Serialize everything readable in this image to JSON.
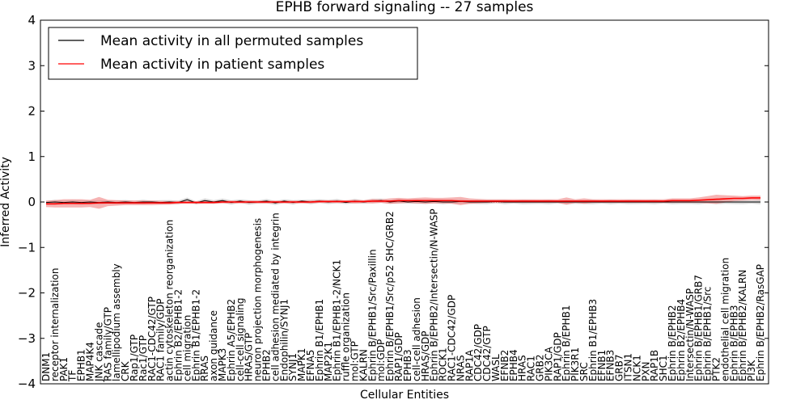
{
  "chart_data": {
    "type": "line",
    "title": "EPHB forward signaling -- 27 samples",
    "xlabel": "Cellular Entities",
    "ylabel": "Inferred Activity",
    "ylim": [
      -4,
      4
    ],
    "yticks": [
      -4,
      -3,
      -2,
      -1,
      0,
      1,
      2,
      3,
      4
    ],
    "ytick_labels": [
      "−4",
      "−3",
      "−2",
      "−1",
      "0",
      "1",
      "2",
      "3",
      "4"
    ],
    "legend_position": "top-left",
    "grid": false,
    "categories": [
      "DNM1",
      "receptor internalization",
      "PAK1",
      "TF",
      "EPHB1",
      "MAP4K4",
      "JNK cascade",
      "RAS family/GTP",
      "lamellipodium assembly",
      "CRK",
      "Rap1/GTP",
      "Rac1/GTP",
      "RAC1-CDC42/GTP",
      "RAC1 family/GDP",
      "actin cytoskeleton reorganization",
      "Ephrin B2/EPHB1-2",
      "cell migration",
      "Ephrin B1/EPHB1-2",
      "RRAS",
      "axon guidance",
      "MAPK3",
      "Ephrin A5/EPHB2",
      "cell-cell signaling",
      "HRAS/GTP",
      "neuron projection morphogenesis",
      "EPHB2",
      "cell adhesion mediated by integrin",
      "Endophilin/SYNJ1",
      "SYNJ1",
      "MAPK1",
      "EFNA5",
      "Ephrin B1/EPHB1",
      "MAP2K1",
      "Ephrin B1/EPHB1-2/NCK1",
      "ruffle organization",
      "mol:GTP",
      "KALRN",
      "Ephrin B/EPHB1/Src/Paxillin",
      "mol:GDP",
      "Ephrin B/EPHB1/Src/p52 SHC/GRB2",
      "RAP1/GDP",
      "EPHB3",
      "cell-cell adhesion",
      "HRAS/GDP",
      "Ephrin B/EPHB2/Intersectin/N-WASP",
      "ROCK1",
      "RAC1-CDC42/GDP",
      "NRAS",
      "RAP1A",
      "CDC42/GDP",
      "CDC42/GTP",
      "WASL",
      "EFNB2",
      "EPHB4",
      "HRAS",
      "RAC1",
      "GRB2",
      "PIK3CA",
      "RAP1/GDP",
      "Ephrin B/EPHB1",
      "PIK3R1",
      "SRC",
      "Ephrin B1/EPHB3",
      "EFNB1",
      "EFNB3",
      "GRB7",
      "ITSN1",
      "NCK1",
      "PXN",
      "RAP1B",
      "SHC1",
      "Ephrin B/EPHB2",
      "Ephrin B2/EPHB4",
      "Intersectin/N-WASP",
      "Ephrin B/EPHB1/GRB7",
      "Ephrin B/EPHB1/Src",
      "PTK2",
      "endothelial cell migration",
      "Ephrin B/EPHB3",
      "Ephrin B/EPHB2/KALRN",
      "PI3K",
      "Ephrin B/EPHB2/RasGAP"
    ],
    "series": [
      {
        "name": "Mean activity in all permuted samples",
        "color": "#000000",
        "values": [
          -0.01,
          0.0,
          -0.01,
          0.0,
          -0.01,
          0.0,
          -0.01,
          0.0,
          -0.01,
          0.0,
          -0.01,
          0.0,
          0.0,
          -0.01,
          0.0,
          -0.01,
          0.05,
          -0.02,
          0.03,
          0.0,
          0.03,
          -0.01,
          0.02,
          -0.01,
          0.0,
          0.02,
          -0.02,
          0.02,
          -0.01,
          0.02,
          0.0,
          0.02,
          0.0,
          0.02,
          -0.01,
          0.02,
          0.0,
          0.02,
          0.03,
          0.0,
          0.02,
          0.0,
          0.01,
          0.0,
          0.01,
          0.0,
          0.0,
          0.01,
          0.0,
          0.0,
          0.0,
          0.01,
          0.0,
          0.0,
          0.0,
          0.0,
          0.0,
          0.0,
          0.0,
          0.0,
          0.0,
          0.0,
          0.0,
          0.0,
          0.0,
          0.0,
          0.0,
          0.0,
          0.0,
          0.0,
          0.0,
          0.0,
          0.0,
          0.0,
          0.0,
          0.0,
          0.0,
          0.0,
          0.0,
          0.0,
          0.0,
          0.0
        ]
      },
      {
        "name": "Mean activity in patient samples",
        "color": "#ff0000",
        "band_color": "#f08080",
        "values": [
          -0.04,
          -0.04,
          -0.03,
          -0.03,
          -0.03,
          -0.03,
          -0.02,
          -0.02,
          -0.02,
          -0.02,
          -0.02,
          -0.02,
          -0.02,
          -0.02,
          -0.02,
          -0.01,
          -0.01,
          -0.01,
          -0.01,
          -0.01,
          0.0,
          0.0,
          0.0,
          0.0,
          0.0,
          0.0,
          0.0,
          0.0,
          0.0,
          0.0,
          0.0,
          0.01,
          0.01,
          0.01,
          0.01,
          0.01,
          0.01,
          0.02,
          0.02,
          0.02,
          0.03,
          0.03,
          0.03,
          0.03,
          0.03,
          0.03,
          0.03,
          0.02,
          0.02,
          0.02,
          0.02,
          0.02,
          0.02,
          0.02,
          0.02,
          0.02,
          0.02,
          0.02,
          0.02,
          0.02,
          0.02,
          0.02,
          0.02,
          0.02,
          0.02,
          0.02,
          0.02,
          0.02,
          0.02,
          0.02,
          0.02,
          0.03,
          0.03,
          0.03,
          0.04,
          0.05,
          0.06,
          0.07,
          0.08,
          0.08,
          0.09,
          0.09
        ],
        "band_halfwidth": [
          0.07,
          0.08,
          0.09,
          0.09,
          0.09,
          0.08,
          0.13,
          0.07,
          0.06,
          0.05,
          0.05,
          0.05,
          0.05,
          0.04,
          0.04,
          0.03,
          0.03,
          0.03,
          0.03,
          0.03,
          0.03,
          0.03,
          0.03,
          0.03,
          0.03,
          0.03,
          0.03,
          0.03,
          0.03,
          0.03,
          0.03,
          0.03,
          0.03,
          0.03,
          0.03,
          0.04,
          0.03,
          0.05,
          0.04,
          0.06,
          0.06,
          0.05,
          0.06,
          0.07,
          0.06,
          0.06,
          0.07,
          0.09,
          0.06,
          0.05,
          0.04,
          0.04,
          0.04,
          0.04,
          0.04,
          0.04,
          0.04,
          0.04,
          0.04,
          0.08,
          0.04,
          0.06,
          0.04,
          0.04,
          0.04,
          0.04,
          0.04,
          0.04,
          0.04,
          0.04,
          0.04,
          0.05,
          0.05,
          0.05,
          0.06,
          0.08,
          0.1,
          0.08,
          0.06,
          0.05,
          0.05,
          0.05
        ]
      }
    ]
  }
}
